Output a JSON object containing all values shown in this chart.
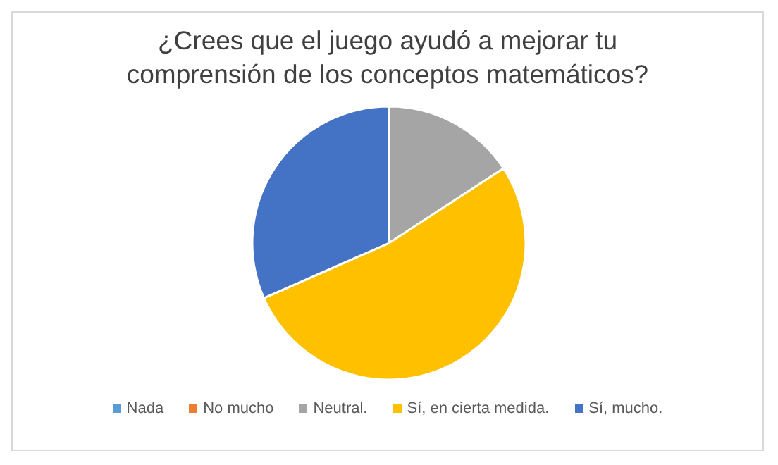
{
  "chart_data": {
    "type": "pie",
    "title": "¿Crees que el juego ayudó a mejorar tu comprensión de los conceptos matemáticos?",
    "categories": [
      "Nada",
      "No mucho",
      "Neutral.",
      "Sí, en cierta medida.",
      "Sí, mucho."
    ],
    "values": [
      0,
      0,
      15.8,
      52.6,
      31.6
    ],
    "colors": [
      "#5b9bd5",
      "#ed7d31",
      "#a5a5a5",
      "#ffc000",
      "#4472c4"
    ],
    "legend": "bottom"
  }
}
